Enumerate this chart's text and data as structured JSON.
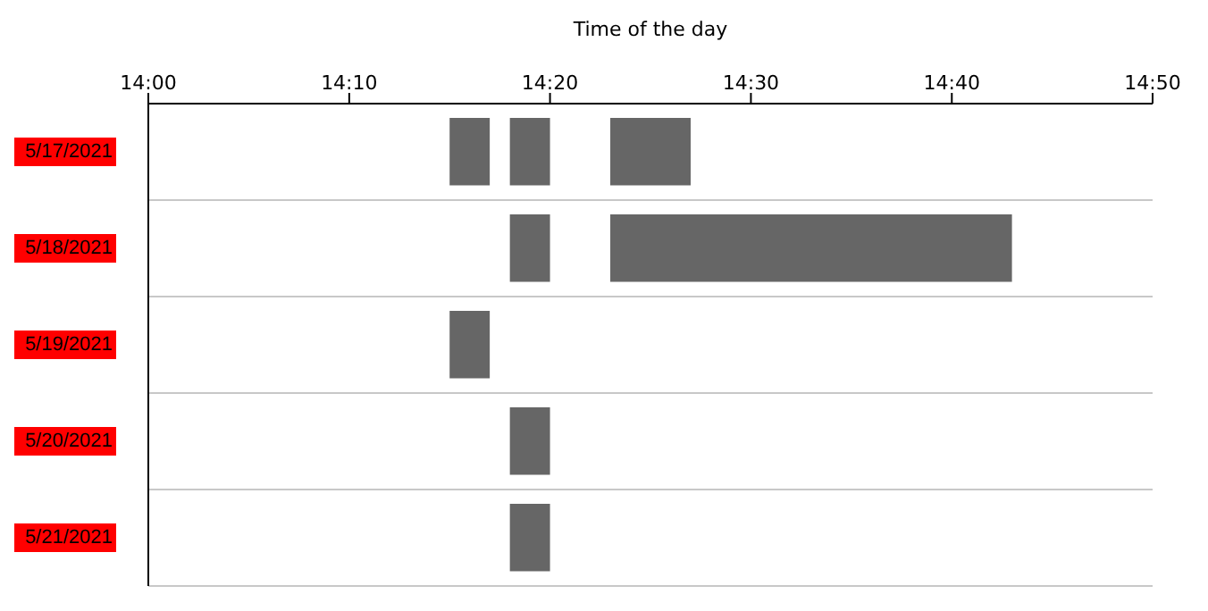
{
  "chart_data": {
    "type": "bar",
    "orientation": "horizontal",
    "xlabel": "Time of the day",
    "categories": [
      "5/17/2021",
      "5/18/2021",
      "5/19/2021",
      "5/20/2021",
      "5/21/2021"
    ],
    "series": [
      {
        "color": "#666666",
        "base": [
          14.25,
          null,
          14.25,
          null,
          null
        ],
        "values": [
          0.0333,
          null,
          0.0333,
          null,
          null
        ]
      },
      {
        "color": "#666666",
        "base": [
          14.3,
          14.3,
          null,
          14.3,
          14.3
        ],
        "values": [
          0.0333,
          0.0333,
          null,
          0.0333,
          0.0333
        ]
      },
      {
        "color": "#666666",
        "base": [
          14.3833,
          14.3833,
          null,
          null,
          null
        ],
        "values": [
          0.0667,
          0.3333,
          null,
          null,
          null
        ]
      }
    ],
    "xlim": [
      14,
      14.8333
    ],
    "xticks": [
      {
        "value": 14,
        "label": "14:00"
      },
      {
        "value": 14.1667,
        "label": "14:10"
      },
      {
        "value": 14.3333,
        "label": "14:20"
      },
      {
        "value": 14.5,
        "label": "14:30"
      },
      {
        "value": 14.6667,
        "label": "14:40"
      },
      {
        "value": 14.8333,
        "label": "14:50"
      }
    ],
    "grid": "y",
    "legend": false
  }
}
